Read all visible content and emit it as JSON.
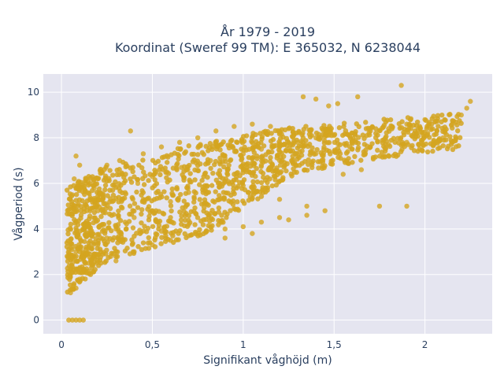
{
  "chart_data": {
    "type": "scatter",
    "title_line1": "År 1979 - 2019",
    "title_line2": "Koordinat (Sweref 99 TM): E 365032, N 6238044",
    "xlabel": "Signifikant våghöjd (m)",
    "ylabel": "Vågperiod (s)",
    "xlim": [
      -0.1,
      2.37
    ],
    "ylim": [
      -0.6,
      10.8
    ],
    "x_ticks": [
      {
        "value": 0,
        "label": "0"
      },
      {
        "value": 0.5,
        "label": "0,5"
      },
      {
        "value": 1,
        "label": "1"
      },
      {
        "value": 1.5,
        "label": "1,5"
      },
      {
        "value": 2,
        "label": "2"
      }
    ],
    "y_ticks": [
      {
        "value": 0,
        "label": "0"
      },
      {
        "value": 2,
        "label": "2"
      },
      {
        "value": 4,
        "label": "4"
      },
      {
        "value": 6,
        "label": "6"
      },
      {
        "value": 8,
        "label": "8"
      },
      {
        "value": 10,
        "label": "10"
      }
    ],
    "grid": true,
    "legend": "none",
    "marker_color": "#D4A520",
    "plot_bg": "#E5E5F0",
    "points": [
      [
        0.04,
        0
      ],
      [
        0.06,
        0
      ],
      [
        0.08,
        0
      ],
      [
        0.1,
        0
      ],
      [
        0.12,
        0
      ],
      [
        0.05,
        1.2
      ],
      [
        0.08,
        1.4
      ],
      [
        0.1,
        1.8
      ],
      [
        0.12,
        2.2
      ],
      [
        0.15,
        2.5
      ],
      [
        0.18,
        2.9
      ],
      [
        0.2,
        3.3
      ],
      [
        0.25,
        3.6
      ],
      [
        0.3,
        4.0
      ],
      [
        0.35,
        4.3
      ],
      [
        0.06,
        2.5
      ],
      [
        0.08,
        3.0
      ],
      [
        0.1,
        3.6
      ],
      [
        0.12,
        4.2
      ],
      [
        0.14,
        4.8
      ],
      [
        0.16,
        5.3
      ],
      [
        0.18,
        5.8
      ],
      [
        0.2,
        6.2
      ],
      [
        0.22,
        6.5
      ],
      [
        0.25,
        6.8
      ],
      [
        0.06,
        5.5
      ],
      [
        0.07,
        6.2
      ],
      [
        0.08,
        7.2
      ],
      [
        0.1,
        6.8
      ],
      [
        0.38,
        8.3
      ],
      [
        0.32,
        7.0
      ],
      [
        0.45,
        7.3
      ],
      [
        0.55,
        7.6
      ],
      [
        0.65,
        7.8
      ],
      [
        0.75,
        8.0
      ],
      [
        0.28,
        5.2
      ],
      [
        0.35,
        5.6
      ],
      [
        0.42,
        6.0
      ],
      [
        0.5,
        6.3
      ],
      [
        0.58,
        6.5
      ],
      [
        0.66,
        6.7
      ],
      [
        0.74,
        6.9
      ],
      [
        0.82,
        7.0
      ],
      [
        0.9,
        7.1
      ],
      [
        1.0,
        7.3
      ],
      [
        0.3,
        2.6
      ],
      [
        0.4,
        3.0
      ],
      [
        0.5,
        3.3
      ],
      [
        0.6,
        3.5
      ],
      [
        0.7,
        3.7
      ],
      [
        0.8,
        3.9
      ],
      [
        0.9,
        4.0
      ],
      [
        1.0,
        4.1
      ],
      [
        1.1,
        4.3
      ],
      [
        1.2,
        4.5
      ],
      [
        1.1,
        7.5
      ],
      [
        1.2,
        7.6
      ],
      [
        1.3,
        7.8
      ],
      [
        1.4,
        8.0
      ],
      [
        1.5,
        8.1
      ],
      [
        1.6,
        8.2
      ],
      [
        1.7,
        8.3
      ],
      [
        1.8,
        8.4
      ],
      [
        1.9,
        8.6
      ],
      [
        2.0,
        8.8
      ],
      [
        1.0,
        6.6
      ],
      [
        1.1,
        6.8
      ],
      [
        1.2,
        7.0
      ],
      [
        1.3,
        7.2
      ],
      [
        1.4,
        7.3
      ],
      [
        1.5,
        7.4
      ],
      [
        1.6,
        7.5
      ],
      [
        1.7,
        7.6
      ],
      [
        1.8,
        7.7
      ],
      [
        1.9,
        7.8
      ],
      [
        1.25,
        4.4
      ],
      [
        1.35,
        4.6
      ],
      [
        1.45,
        4.8
      ],
      [
        1.35,
        5.0
      ],
      [
        1.2,
        5.3
      ],
      [
        1.55,
        6.4
      ],
      [
        1.65,
        6.6
      ],
      [
        1.75,
        5.0
      ],
      [
        1.9,
        5.0
      ],
      [
        2.1,
        8.0
      ],
      [
        2.2,
        9.0
      ],
      [
        2.25,
        9.6
      ],
      [
        2.23,
        9.3
      ],
      [
        2.15,
        8.6
      ],
      [
        1.87,
        10.3
      ],
      [
        1.52,
        9.5
      ],
      [
        1.47,
        9.4
      ],
      [
        1.63,
        9.8
      ],
      [
        1.33,
        9.8
      ],
      [
        1.4,
        9.7
      ],
      [
        0.5,
        4.8
      ],
      [
        0.6,
        5.2
      ],
      [
        0.7,
        5.6
      ],
      [
        0.8,
        5.9
      ],
      [
        0.9,
        6.1
      ],
      [
        1.0,
        5.9
      ],
      [
        0.4,
        4.5
      ],
      [
        0.3,
        4.1
      ],
      [
        0.2,
        4.8
      ],
      [
        0.15,
        3.2
      ],
      [
        0.85,
        8.3
      ],
      [
        0.95,
        8.5
      ],
      [
        1.05,
        8.6
      ],
      [
        1.15,
        8.5
      ],
      [
        1.25,
        8.4
      ],
      [
        0.9,
        3.6
      ],
      [
        1.05,
        3.8
      ],
      [
        0.7,
        4.2
      ],
      [
        0.55,
        3.9
      ],
      [
        0.45,
        5.3
      ]
    ]
  }
}
